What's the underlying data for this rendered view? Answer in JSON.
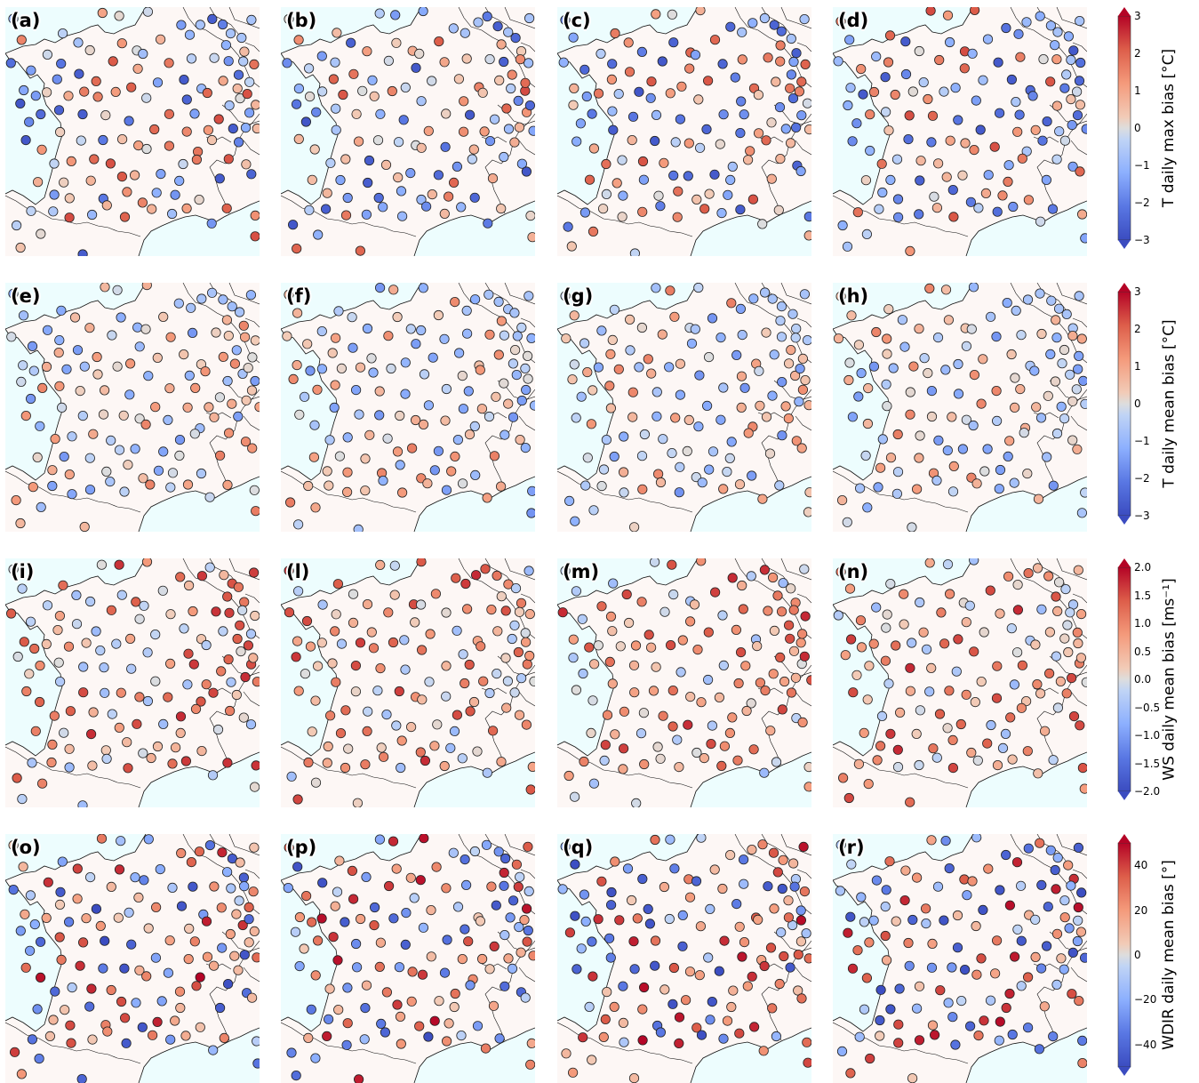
{
  "panels": [
    {
      "label": "(a)",
      "seed": 11,
      "row": 0,
      "col": 0
    },
    {
      "label": "(b)",
      "seed": 23,
      "row": 0,
      "col": 1
    },
    {
      "label": "(c)",
      "seed": 37,
      "row": 0,
      "col": 2
    },
    {
      "label": "(d)",
      "seed": 41,
      "row": 0,
      "col": 3
    },
    {
      "label": "(e)",
      "seed": 53,
      "row": 1,
      "col": 0
    },
    {
      "label": "(f)",
      "seed": 67,
      "row": 1,
      "col": 1
    },
    {
      "label": "(g)",
      "seed": 71,
      "row": 1,
      "col": 2
    },
    {
      "label": "(h)",
      "seed": 83,
      "row": 1,
      "col": 3
    },
    {
      "label": "(i)",
      "seed": 97,
      "row": 2,
      "col": 0
    },
    {
      "label": "(l)",
      "seed": 101,
      "row": 2,
      "col": 1
    },
    {
      "label": "(m)",
      "seed": 113,
      "row": 2,
      "col": 2
    },
    {
      "label": "(n)",
      "seed": 127,
      "row": 2,
      "col": 3
    },
    {
      "label": "(o)",
      "seed": 131,
      "row": 3,
      "col": 0
    },
    {
      "label": "(p)",
      "seed": 149,
      "row": 3,
      "col": 1
    },
    {
      "label": "(q)",
      "seed": 157,
      "row": 3,
      "col": 2
    },
    {
      "label": "(r)",
      "seed": 163,
      "row": 3,
      "col": 3
    }
  ],
  "colorbars": [
    {
      "title": "T daily max bias [°C]",
      "ticks": [
        "3",
        "2",
        "1",
        "0",
        "−1",
        "−2",
        "−3"
      ],
      "range": [
        -3,
        3
      ],
      "row": 0
    },
    {
      "title": "T daily mean bias [°C]",
      "ticks": [
        "3",
        "2",
        "1",
        "0",
        "−1",
        "−2",
        "−3"
      ],
      "range": [
        -3,
        3
      ],
      "row": 1
    },
    {
      "title": "WS daily mean bias [ms⁻¹]",
      "ticks": [
        "2.0",
        "1.5",
        "1.0",
        "0.5",
        "0.0",
        "−0.5",
        "−1.0",
        "−1.5",
        "−2.0"
      ],
      "range": [
        -2,
        2
      ],
      "row": 2
    },
    {
      "title": "WDIR daily mean bias [°]",
      "ticks": [
        "40",
        "20",
        "0",
        "−20",
        "−40"
      ],
      "tick_values": [
        40,
        20,
        0,
        -20,
        -40
      ],
      "range": [
        -50,
        50
      ],
      "row": 3
    }
  ],
  "colors": {
    "land": "#fdf7f5",
    "sea": "#edfdfe",
    "cmap_low": "#3b4cc0",
    "cmap_mid": "#dddddd",
    "cmap_high": "#b40426"
  }
}
